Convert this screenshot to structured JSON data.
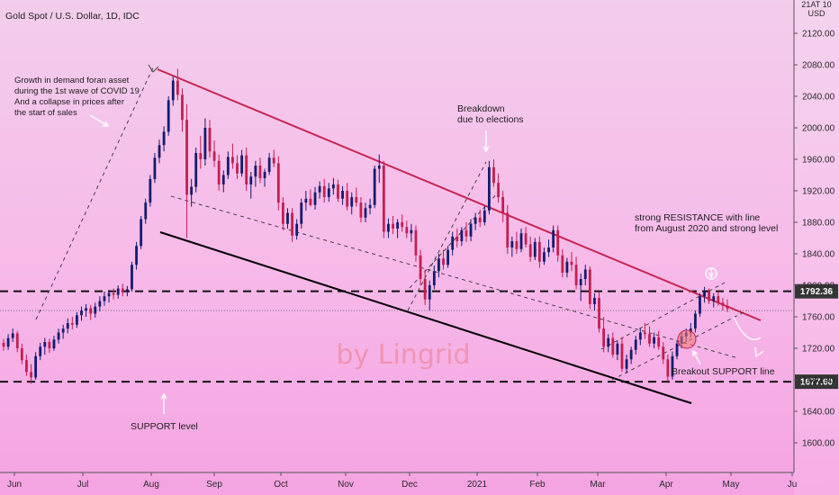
{
  "chart_data": {
    "type": "candlestick",
    "title": "Gold Spot / U.S. Dollar, 1D, IDC",
    "axis_header": [
      "21AT 10",
      "USD"
    ],
    "watermark": "by Lingrid",
    "x_ticks": [
      "Jun",
      "Jul",
      "Aug",
      "Sep",
      "Oct",
      "Nov",
      "Dec",
      "2021",
      "Feb",
      "Mar",
      "Apr",
      "May",
      "Ju"
    ],
    "y_ticks": [
      1600,
      1640,
      1680,
      1720,
      1760,
      1800,
      1840,
      1880,
      1920,
      1960,
      2000,
      2040,
      2080,
      2120
    ],
    "y_tick_labels": [
      "1600.00",
      "1640.00",
      "1680.00",
      "1720.00",
      "1760.00",
      "1800.00",
      "1840.00",
      "1880.00",
      "1920.00",
      "1960.00",
      "2000.00",
      "2040.00",
      "2080.00",
      "2120.00"
    ],
    "ylim": [
      1570,
      2160
    ],
    "levels": [
      {
        "name": "resistance-level",
        "value": 1792.36,
        "label": "1792.36"
      },
      {
        "name": "support-level",
        "value": 1677.6,
        "label": "1677.60"
      }
    ],
    "current_price": 1768,
    "annotations": [
      {
        "name": "covid-note",
        "lines": [
          "Growth in demand foran asset",
          "during the 1st wave of COVID 19",
          "And a collapse in prices after",
          "the start of sales"
        ]
      },
      {
        "name": "breakdown-note",
        "lines": [
          "Breakdown",
          "due to elections"
        ]
      },
      {
        "name": "resistance-note",
        "lines": [
          "strong RESISTANCE with line",
          "from August 2020 and strong level"
        ]
      },
      {
        "name": "breakout-note",
        "lines": [
          "Breakout SUPPORT line"
        ]
      },
      {
        "name": "support-note",
        "lines": [
          "SUPPORT level"
        ]
      }
    ],
    "colors": {
      "up": "#131c6e",
      "down": "#c21f4f",
      "resistance_line": "#c8244f",
      "support_line": "#000000"
    },
    "ohlc": [
      [
        1727,
        1732,
        1717,
        1722
      ],
      [
        1722,
        1738,
        1718,
        1733
      ],
      [
        1733,
        1745,
        1728,
        1739
      ],
      [
        1739,
        1742,
        1715,
        1720
      ],
      [
        1720,
        1726,
        1700,
        1705
      ],
      [
        1705,
        1712,
        1685,
        1690
      ],
      [
        1690,
        1700,
        1675,
        1683
      ],
      [
        1683,
        1715,
        1680,
        1710
      ],
      [
        1710,
        1727,
        1705,
        1722
      ],
      [
        1722,
        1733,
        1712,
        1728
      ],
      [
        1728,
        1732,
        1714,
        1720
      ],
      [
        1720,
        1736,
        1717,
        1731
      ],
      [
        1731,
        1745,
        1726,
        1740
      ],
      [
        1740,
        1750,
        1732,
        1745
      ],
      [
        1745,
        1758,
        1739,
        1752
      ],
      [
        1752,
        1760,
        1744,
        1750
      ],
      [
        1750,
        1766,
        1746,
        1762
      ],
      [
        1762,
        1773,
        1755,
        1768
      ],
      [
        1768,
        1776,
        1760,
        1771
      ],
      [
        1771,
        1775,
        1756,
        1764
      ],
      [
        1764,
        1778,
        1759,
        1773
      ],
      [
        1773,
        1786,
        1767,
        1780
      ],
      [
        1780,
        1792,
        1774,
        1786
      ],
      [
        1786,
        1794,
        1778,
        1790
      ],
      [
        1790,
        1796,
        1782,
        1788
      ],
      [
        1788,
        1800,
        1783,
        1796
      ],
      [
        1796,
        1802,
        1786,
        1791
      ],
      [
        1791,
        1799,
        1786,
        1795
      ],
      [
        1795,
        1830,
        1792,
        1826
      ],
      [
        1826,
        1855,
        1820,
        1850
      ],
      [
        1850,
        1888,
        1846,
        1884
      ],
      [
        1884,
        1910,
        1878,
        1905
      ],
      [
        1905,
        1940,
        1900,
        1935
      ],
      [
        1935,
        1968,
        1930,
        1962
      ],
      [
        1962,
        1985,
        1955,
        1978
      ],
      [
        1978,
        2002,
        1970,
        1995
      ],
      [
        1995,
        2040,
        1990,
        2035
      ],
      [
        2035,
        2065,
        2028,
        2060
      ],
      [
        2060,
        2075,
        2035,
        2042
      ],
      [
        2042,
        2050,
        1995,
        2010
      ],
      [
        2010,
        2030,
        1860,
        1915
      ],
      [
        1915,
        1935,
        1900,
        1925
      ],
      [
        1925,
        1975,
        1918,
        1968
      ],
      [
        1968,
        1990,
        1948,
        1960
      ],
      [
        1960,
        2012,
        1952,
        2000
      ],
      [
        2000,
        2010,
        1962,
        1970
      ],
      [
        1970,
        1984,
        1950,
        1958
      ],
      [
        1958,
        1966,
        1920,
        1928
      ],
      [
        1928,
        1946,
        1918,
        1940
      ],
      [
        1940,
        1970,
        1935,
        1963
      ],
      [
        1963,
        1980,
        1948,
        1955
      ],
      [
        1955,
        1965,
        1935,
        1942
      ],
      [
        1942,
        1972,
        1938,
        1965
      ],
      [
        1965,
        1975,
        1920,
        1928
      ],
      [
        1928,
        1944,
        1910,
        1938
      ],
      [
        1938,
        1958,
        1925,
        1952
      ],
      [
        1952,
        1962,
        1930,
        1936
      ],
      [
        1936,
        1948,
        1925,
        1944
      ],
      [
        1944,
        1968,
        1940,
        1962
      ],
      [
        1962,
        1972,
        1950,
        1955
      ],
      [
        1955,
        1964,
        1895,
        1905
      ],
      [
        1905,
        1912,
        1870,
        1878
      ],
      [
        1878,
        1898,
        1872,
        1892
      ],
      [
        1892,
        1898,
        1855,
        1863
      ],
      [
        1863,
        1884,
        1858,
        1878
      ],
      [
        1878,
        1910,
        1872,
        1905
      ],
      [
        1905,
        1920,
        1895,
        1910
      ],
      [
        1910,
        1922,
        1900,
        1902
      ],
      [
        1902,
        1925,
        1896,
        1918
      ],
      [
        1918,
        1932,
        1910,
        1926
      ],
      [
        1926,
        1935,
        1905,
        1912
      ],
      [
        1912,
        1930,
        1906,
        1923
      ],
      [
        1923,
        1936,
        1915,
        1928
      ],
      [
        1928,
        1934,
        1906,
        1910
      ],
      [
        1910,
        1926,
        1902,
        1920
      ],
      [
        1920,
        1930,
        1895,
        1900
      ],
      [
        1900,
        1918,
        1890,
        1912
      ],
      [
        1912,
        1924,
        1900,
        1905
      ],
      [
        1905,
        1912,
        1880,
        1886
      ],
      [
        1886,
        1905,
        1880,
        1898
      ],
      [
        1898,
        1910,
        1890,
        1902
      ],
      [
        1902,
        1952,
        1898,
        1948
      ],
      [
        1948,
        1966,
        1930,
        1952
      ],
      [
        1952,
        1958,
        1860,
        1868
      ],
      [
        1868,
        1885,
        1860,
        1878
      ],
      [
        1878,
        1888,
        1865,
        1872
      ],
      [
        1872,
        1884,
        1860,
        1880
      ],
      [
        1880,
        1890,
        1868,
        1874
      ],
      [
        1874,
        1882,
        1860,
        1866
      ],
      [
        1866,
        1878,
        1855,
        1870
      ],
      [
        1870,
        1876,
        1830,
        1838
      ],
      [
        1838,
        1845,
        1800,
        1808
      ],
      [
        1808,
        1820,
        1775,
        1782
      ],
      [
        1782,
        1806,
        1768,
        1800
      ],
      [
        1800,
        1825,
        1795,
        1818
      ],
      [
        1818,
        1840,
        1810,
        1834
      ],
      [
        1834,
        1845,
        1820,
        1826
      ],
      [
        1826,
        1850,
        1822,
        1845
      ],
      [
        1845,
        1868,
        1838,
        1862
      ],
      [
        1862,
        1872,
        1848,
        1856
      ],
      [
        1856,
        1874,
        1850,
        1870
      ],
      [
        1870,
        1880,
        1855,
        1862
      ],
      [
        1862,
        1884,
        1856,
        1878
      ],
      [
        1878,
        1892,
        1870,
        1886
      ],
      [
        1886,
        1896,
        1874,
        1880
      ],
      [
        1880,
        1900,
        1876,
        1895
      ],
      [
        1895,
        1958,
        1890,
        1950
      ],
      [
        1950,
        1960,
        1925,
        1930
      ],
      [
        1930,
        1942,
        1905,
        1912
      ],
      [
        1912,
        1920,
        1880,
        1892
      ],
      [
        1892,
        1902,
        1840,
        1848
      ],
      [
        1848,
        1862,
        1836,
        1856
      ],
      [
        1856,
        1868,
        1840,
        1846
      ],
      [
        1846,
        1872,
        1842,
        1866
      ],
      [
        1866,
        1874,
        1848,
        1852
      ],
      [
        1852,
        1862,
        1830,
        1836
      ],
      [
        1836,
        1860,
        1832,
        1855
      ],
      [
        1855,
        1862,
        1822,
        1830
      ],
      [
        1830,
        1848,
        1826,
        1842
      ],
      [
        1842,
        1858,
        1836,
        1848
      ],
      [
        1848,
        1876,
        1842,
        1870
      ],
      [
        1870,
        1876,
        1830,
        1838
      ],
      [
        1838,
        1846,
        1810,
        1816
      ],
      [
        1816,
        1835,
        1810,
        1830
      ],
      [
        1830,
        1842,
        1818,
        1826
      ],
      [
        1826,
        1836,
        1795,
        1800
      ],
      [
        1800,
        1815,
        1780,
        1808
      ],
      [
        1808,
        1826,
        1800,
        1820
      ],
      [
        1820,
        1824,
        1770,
        1776
      ],
      [
        1776,
        1790,
        1768,
        1784
      ],
      [
        1784,
        1792,
        1740,
        1745
      ],
      [
        1745,
        1760,
        1715,
        1722
      ],
      [
        1722,
        1738,
        1715,
        1733
      ],
      [
        1733,
        1740,
        1708,
        1712
      ],
      [
        1712,
        1730,
        1705,
        1726
      ],
      [
        1726,
        1734,
        1690,
        1694
      ],
      [
        1694,
        1712,
        1688,
        1706
      ],
      [
        1706,
        1722,
        1700,
        1718
      ],
      [
        1718,
        1736,
        1712,
        1731
      ],
      [
        1731,
        1745,
        1724,
        1740
      ],
      [
        1740,
        1752,
        1732,
        1738
      ],
      [
        1738,
        1748,
        1722,
        1726
      ],
      [
        1726,
        1740,
        1720,
        1734
      ],
      [
        1734,
        1742,
        1718,
        1722
      ],
      [
        1722,
        1728,
        1700,
        1706
      ],
      [
        1706,
        1712,
        1678,
        1684
      ],
      [
        1684,
        1716,
        1680,
        1710
      ],
      [
        1710,
        1730,
        1706,
        1726
      ],
      [
        1726,
        1740,
        1720,
        1735
      ],
      [
        1735,
        1745,
        1728,
        1740
      ],
      [
        1740,
        1752,
        1734,
        1745
      ],
      [
        1745,
        1768,
        1740,
        1764
      ],
      [
        1764,
        1790,
        1760,
        1786
      ],
      [
        1786,
        1798,
        1778,
        1792
      ],
      [
        1792,
        1796,
        1776,
        1780
      ],
      [
        1780,
        1790,
        1772,
        1786
      ],
      [
        1786,
        1792,
        1774,
        1778
      ],
      [
        1778,
        1784,
        1768,
        1774
      ],
      [
        1774,
        1782,
        1766,
        1770
      ]
    ]
  }
}
